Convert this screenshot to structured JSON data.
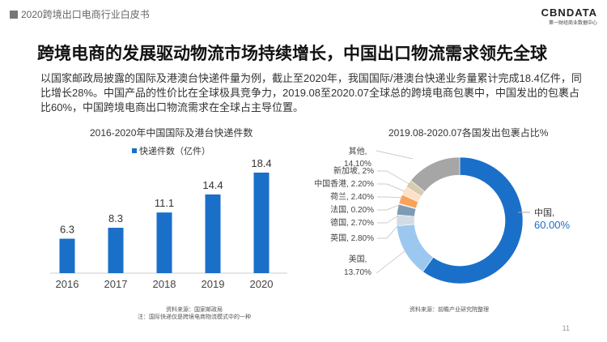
{
  "header": {
    "report_title": "2020跨境出口电商行业白皮书",
    "logo_text": "CBNDATA",
    "logo_sub": "第一财经商业数据中心"
  },
  "title": "跨境电商的发展驱动物流市场持续增长，中国出口物流需求领先全球",
  "paragraph": "以国家邮政局披露的国际及港澳台快递件量为例，截止至2020年，我国国际/港澳台快递业务量累计完成18.4亿件，同比增长28%。中国产品的性价比在全球极具竞争力，2019.08至2020.07全球总的跨境电商包裹中，中国发出的包裹占比60%，中国跨境电商出口物流需求在全球占主导位置。",
  "page_number": "11",
  "chart_data": [
    {
      "type": "bar",
      "title": "2016-2020年中国国际及港台快递件数",
      "categories": [
        "2016",
        "2017",
        "2018",
        "2019",
        "2020"
      ],
      "series": [
        {
          "name": "快递件数（亿件）",
          "values": [
            6.3,
            8.3,
            11.1,
            14.4,
            18.4
          ]
        }
      ],
      "value_labels": [
        "6.3",
        "8.3",
        "11.1",
        "14.4",
        "18.4"
      ],
      "color": "#1a6fc9",
      "grid": false,
      "legend": "top",
      "source": "资料来源：国家邮政局",
      "note": "注：国际快递仅是跨境电商物流模式中的一种"
    },
    {
      "type": "pie",
      "donut": true,
      "title": "2019.08-2020.07各国发出包裹占比%",
      "slices": [
        {
          "label": "中国,",
          "value": 60.0,
          "text": "60.00%",
          "color": "#1a6fc9"
        },
        {
          "label": "美国,",
          "value": 13.7,
          "text": "13.70%",
          "color": "#9cc8f0"
        },
        {
          "label": "英国,",
          "value": 2.8,
          "text": "2.80%",
          "color": "#d3dce4"
        },
        {
          "label": "德国,",
          "value": 2.7,
          "text": "2.70%",
          "color": "#7d9bb3"
        },
        {
          "label": "法国,",
          "value": 0.2,
          "text": "0.20%",
          "color": "#c9d3db"
        },
        {
          "label": "荷兰,",
          "value": 2.4,
          "text": "2.40%",
          "color": "#f7a35c"
        },
        {
          "label": "中国香港,",
          "value": 2.2,
          "text": "2.20%",
          "color": "#fde0c5"
        },
        {
          "label": "新加坡,",
          "value": 2.0,
          "text": "2%",
          "color": "#d6cdb0"
        },
        {
          "label": "其他,",
          "value": 14.1,
          "text": "14.10%",
          "color": "#a6a6a6"
        }
      ],
      "source": "资料来源：前瞻产业研究院整理"
    }
  ]
}
